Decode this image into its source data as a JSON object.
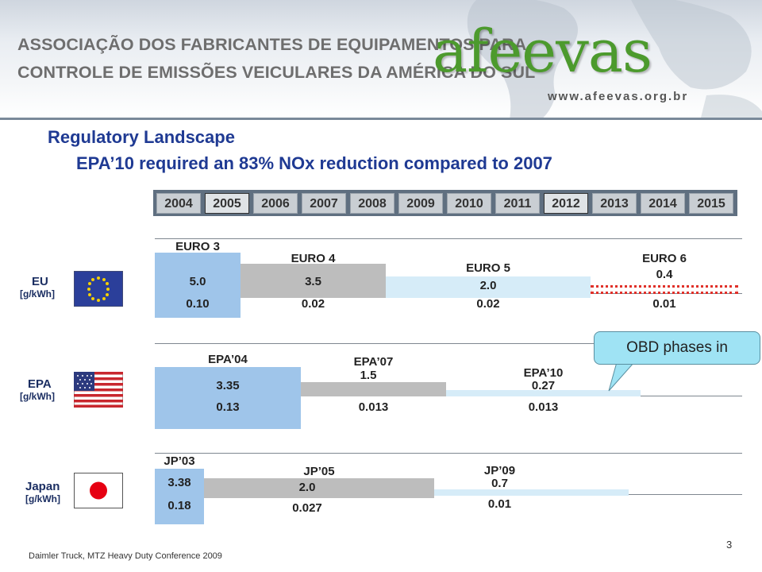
{
  "header": {
    "org_line1": "ASSOCIAÇÃO DOS FABRICANTES DE EQUIPAMENTOS PARA",
    "org_line2": "CONTROLE DE EMISSÕES VEICULARES DA AMÉRICA DO SUL",
    "brand": "afeevas",
    "url": "www.afeevas.org.br"
  },
  "title": "Regulatory Landscape",
  "subtitle": "EPA’10 required an 83% NOx reduction compared to 2007",
  "years": [
    "2004",
    "2005",
    "2006",
    "2007",
    "2008",
    "2009",
    "2010",
    "2011",
    "2012",
    "2013",
    "2014",
    "2015"
  ],
  "regions": {
    "eu": {
      "name": "EU",
      "unit": "[g/kWh]",
      "stages": [
        {
          "name": "EURO 3",
          "nox": "5.0",
          "pm": "0.10"
        },
        {
          "name": "EURO 4",
          "nox": "3.5",
          "pm": "0.02"
        },
        {
          "name": "EURO 5",
          "nox": "2.0",
          "pm": "0.02"
        },
        {
          "name": "EURO 6",
          "nox": "0.4",
          "pm": "0.01"
        }
      ]
    },
    "epa": {
      "name": "EPA",
      "unit": "[g/kWh]",
      "stages": [
        {
          "name": "EPA’04",
          "nox": "3.35",
          "pm": "0.13"
        },
        {
          "name": "EPA’07",
          "nox": "1.5",
          "pm": "0.013"
        },
        {
          "name": "EPA’10",
          "nox": "0.27",
          "pm": "0.013"
        }
      ]
    },
    "japan": {
      "name": "Japan",
      "unit": "[g/kWh]",
      "stages": [
        {
          "name": "JP’03",
          "nox": "3.38",
          "pm": "0.18"
        },
        {
          "name": "JP’05",
          "nox": "2.0",
          "pm": "0.027"
        },
        {
          "name": "JP’09",
          "nox": "0.7",
          "pm": "0.01"
        }
      ]
    }
  },
  "callout": "OBD phases in",
  "footer": "Daimler Truck, MTZ Heavy Duty Conference 2009",
  "page_number": "3",
  "colors": {
    "title": "#1f3a93",
    "brand": "#4c9a2d",
    "bar_blue": "#9fc5ea",
    "bar_gray": "#bdbdbd",
    "bar_lightblue": "#d6ecf8",
    "euro6_dotted": "#e0312a"
  }
}
